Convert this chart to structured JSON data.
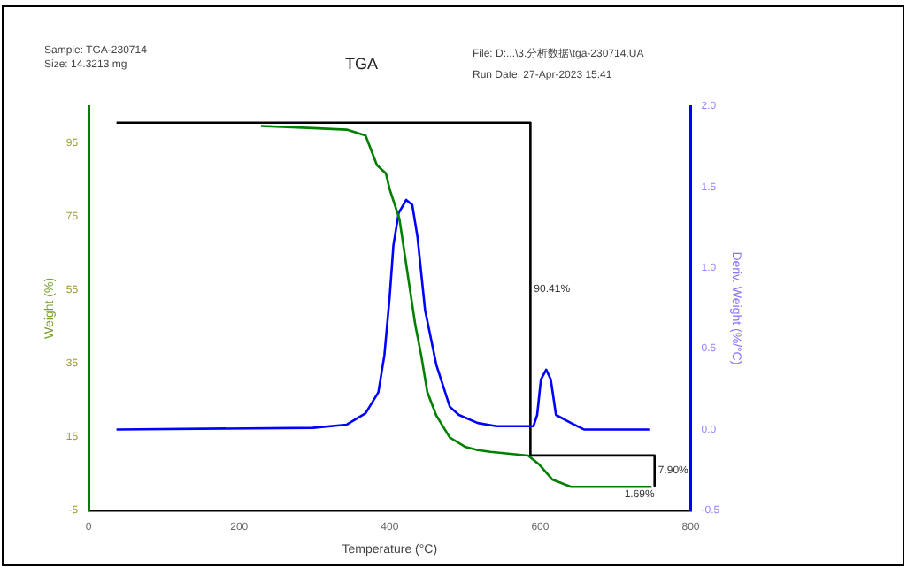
{
  "chart_data": {
    "type": "line",
    "title": "TGA",
    "xlabel": "Temperature (°C)",
    "ylabel": "Weight (%)",
    "y2label": "Deriv. Weight (%/°C)",
    "xlim": [
      0,
      800
    ],
    "xticks": [
      0,
      200,
      400,
      600,
      800
    ],
    "ylim": [
      -5,
      105
    ],
    "yticks": [
      -5,
      15,
      35,
      55,
      75,
      95
    ],
    "y2lim": [
      -0.5,
      2.0
    ],
    "y2ticks": [
      {
        "value": -0.5,
        "label": "-0.5"
      },
      {
        "value": 0,
        "label": "0.0"
      },
      {
        "value": 0.5,
        "label": "0.5"
      },
      {
        "value": 1,
        "label": "1.0"
      },
      {
        "value": 1.5,
        "label": "1.5"
      },
      {
        "value": 2,
        "label": "2.0"
      }
    ],
    "grid": false,
    "legend": false,
    "marker": "none",
    "line_style": "solid",
    "series": [
      {
        "color": "#008000",
        "x": [
          229,
          298,
          343,
          368,
          383,
          395,
          400,
          413,
          422,
          434,
          442,
          450,
          462,
          480,
          500,
          517,
          534,
          584,
          599,
          616,
          641,
          748
        ],
        "values": [
          99.6,
          99,
          98.6,
          97,
          89,
          86.7,
          82.4,
          74.3,
          61.9,
          45.5,
          37.1,
          27.2,
          20.8,
          14.8,
          12.3,
          11.4,
          10.9,
          9.9,
          7.4,
          3.4,
          1.4,
          1.4
        ]
      },
      {
        "color": "#0000ff",
        "axis": "y2",
        "x": [
          37,
          298,
          343,
          368,
          385,
          393,
          400,
          405,
          412,
          422,
          430,
          437,
          447,
          462,
          480,
          492,
          517,
          542,
          591,
          596,
          601,
          608,
          614,
          621,
          641,
          658,
          745
        ],
        "values": [
          0,
          0.01,
          0.03,
          0.1,
          0.23,
          0.46,
          0.82,
          1.14,
          1.34,
          1.42,
          1.39,
          1.19,
          0.74,
          0.4,
          0.14,
          0.09,
          0.04,
          0.02,
          0.02,
          0.09,
          0.31,
          0.37,
          0.31,
          0.09,
          0.04,
          0,
          0
        ]
      },
      {
        "color": "#000000",
        "x": [
          37,
          587,
          587
        ],
        "values": [
          100.5,
          100.5,
          9.9
        ]
      },
      {
        "color": "#000000",
        "x": [
          587,
          752,
          752
        ],
        "values": [
          9.9,
          9.9,
          1.69
        ]
      }
    ],
    "annotations": [
      "Sample: TGA-230714",
      "Size: 14.3213 mg",
      "File: D:...\\3.分析数据\\tga-230714.UA",
      "Run Date: 27-Apr-2023 15:41",
      "90.41%",
      "7.90%",
      "1.69%"
    ]
  }
}
